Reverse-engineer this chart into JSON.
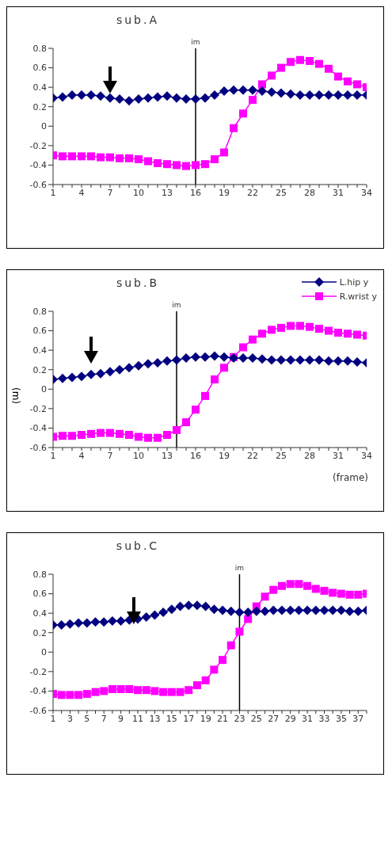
{
  "chart_data": [
    {
      "type": "line",
      "title": "sub.A",
      "x": [
        1,
        2,
        3,
        4,
        5,
        6,
        7,
        8,
        9,
        10,
        11,
        12,
        13,
        14,
        15,
        16,
        17,
        18,
        19,
        20,
        21,
        22,
        23,
        24,
        25,
        26,
        27,
        28,
        29,
        30,
        31,
        32,
        33,
        34
      ],
      "xlim": [
        1,
        34
      ],
      "xticks": [
        1,
        {
          "value": 2,
          "label": null
        },
        {
          "value": 3,
          "label": null
        },
        4,
        {
          "value": 5,
          "label": null
        },
        {
          "value": 6,
          "label": null
        },
        7,
        {
          "value": 8,
          "label": null
        },
        {
          "value": 9,
          "label": null
        },
        10,
        {
          "value": 11,
          "label": null
        },
        {
          "value": 12,
          "label": null
        },
        13,
        {
          "value": 14,
          "label": null
        },
        {
          "value": 15,
          "label": null
        },
        16,
        {
          "value": 17,
          "label": null
        },
        {
          "value": 18,
          "label": null
        },
        19,
        {
          "value": 20,
          "label": null
        },
        {
          "value": 21,
          "label": null
        },
        22,
        {
          "value": 23,
          "label": null
        },
        {
          "value": 24,
          "label": null
        },
        25,
        {
          "value": 26,
          "label": null
        },
        {
          "value": 27,
          "label": null
        },
        28,
        {
          "value": 29,
          "label": null
        },
        {
          "value": 30,
          "label": null
        },
        31,
        {
          "value": 32,
          "label": null
        },
        {
          "value": 33,
          "label": null
        },
        34
      ],
      "ylim": [
        -0.6,
        0.8
      ],
      "yticks": [
        -0.6,
        -0.4,
        -0.2,
        0,
        0.2,
        0.4,
        0.6,
        0.8
      ],
      "series": [
        {
          "color": "#000080",
          "marker": "diamond",
          "values": [
            0.29,
            0.3,
            0.32,
            0.32,
            0.32,
            0.31,
            0.29,
            0.28,
            0.26,
            0.28,
            0.29,
            0.3,
            0.31,
            0.29,
            0.28,
            0.28,
            0.29,
            0.32,
            0.36,
            0.37,
            0.37,
            0.37,
            0.36,
            0.35,
            0.34,
            0.33,
            0.32,
            0.32,
            0.32,
            0.32,
            0.32,
            0.32,
            0.32,
            0.32
          ]
        },
        {
          "color": "#ff00ff",
          "marker": "square",
          "values": [
            -0.3,
            -0.31,
            -0.31,
            -0.31,
            -0.31,
            -0.32,
            -0.32,
            -0.33,
            -0.33,
            -0.34,
            -0.36,
            -0.38,
            -0.39,
            -0.4,
            -0.41,
            -0.4,
            -0.39,
            -0.34,
            -0.27,
            -0.02,
            0.13,
            0.27,
            0.43,
            0.52,
            0.6,
            0.66,
            0.68,
            0.67,
            0.64,
            0.59,
            0.51,
            0.46,
            0.43,
            0.4
          ]
        }
      ],
      "ref_lines": [
        {
          "axis": "x",
          "value": 16,
          "label": "im",
          "color": "#000000"
        }
      ]
    },
    {
      "type": "line",
      "title": "sub.B",
      "xlabel": "(frame)",
      "ylabel": "(m)",
      "legend": "top right",
      "x": [
        1,
        2,
        3,
        4,
        5,
        6,
        7,
        8,
        9,
        10,
        11,
        12,
        13,
        14,
        15,
        16,
        17,
        18,
        19,
        20,
        21,
        22,
        23,
        24,
        25,
        26,
        27,
        28,
        29,
        30,
        31,
        32,
        33,
        34
      ],
      "xlim": [
        1,
        34
      ],
      "xticks": [
        1,
        {
          "value": 2,
          "label": null
        },
        {
          "value": 3,
          "label": null
        },
        4,
        {
          "value": 5,
          "label": null
        },
        {
          "value": 6,
          "label": null
        },
        7,
        {
          "value": 8,
          "label": null
        },
        {
          "value": 9,
          "label": null
        },
        10,
        {
          "value": 11,
          "label": null
        },
        {
          "value": 12,
          "label": null
        },
        13,
        {
          "value": 14,
          "label": null
        },
        {
          "value": 15,
          "label": null
        },
        16,
        {
          "value": 17,
          "label": null
        },
        {
          "value": 18,
          "label": null
        },
        19,
        {
          "value": 20,
          "label": null
        },
        {
          "value": 21,
          "label": null
        },
        22,
        {
          "value": 23,
          "label": null
        },
        {
          "value": 24,
          "label": null
        },
        25,
        {
          "value": 26,
          "label": null
        },
        {
          "value": 27,
          "label": null
        },
        28,
        {
          "value": 29,
          "label": null
        },
        {
          "value": 30,
          "label": null
        },
        31,
        {
          "value": 32,
          "label": null
        },
        {
          "value": 33,
          "label": null
        },
        34
      ],
      "ylim": [
        -0.6,
        0.8
      ],
      "yticks": [
        -0.6,
        -0.4,
        -0.2,
        0,
        0.2,
        0.4,
        0.6,
        0.8
      ],
      "series": [
        {
          "name": "L.hip y",
          "color": "#000080",
          "marker": "diamond",
          "values": [
            0.1,
            0.11,
            0.12,
            0.13,
            0.15,
            0.16,
            0.18,
            0.2,
            0.22,
            0.24,
            0.26,
            0.27,
            0.29,
            0.3,
            0.32,
            0.33,
            0.33,
            0.34,
            0.33,
            0.32,
            0.32,
            0.32,
            0.31,
            0.3,
            0.3,
            0.3,
            0.3,
            0.3,
            0.3,
            0.29,
            0.29,
            0.29,
            0.28,
            0.27
          ]
        },
        {
          "name": "R.wrist y",
          "color": "#ff00ff",
          "marker": "square",
          "values": [
            -0.49,
            -0.48,
            -0.48,
            -0.47,
            -0.46,
            -0.45,
            -0.45,
            -0.46,
            -0.47,
            -0.49,
            -0.5,
            -0.5,
            -0.47,
            -0.42,
            -0.34,
            -0.21,
            -0.07,
            0.1,
            0.22,
            0.33,
            0.43,
            0.51,
            0.57,
            0.61,
            0.63,
            0.65,
            0.65,
            0.64,
            0.62,
            0.6,
            0.58,
            0.57,
            0.56,
            0.55
          ]
        }
      ],
      "ref_lines": [
        {
          "axis": "x",
          "value": 14,
          "label": "im",
          "color": "#000000"
        }
      ]
    },
    {
      "type": "line",
      "title": "sub.C",
      "x": [
        1,
        2,
        3,
        4,
        5,
        6,
        7,
        8,
        9,
        10,
        11,
        12,
        13,
        14,
        15,
        16,
        17,
        18,
        19,
        20,
        21,
        22,
        23,
        24,
        25,
        26,
        27,
        28,
        29,
        30,
        31,
        32,
        33,
        34,
        35,
        36,
        37,
        38
      ],
      "xlim": [
        1,
        38
      ],
      "xticks": [
        1,
        {
          "value": 2,
          "label": null
        },
        3,
        {
          "value": 4,
          "label": null
        },
        5,
        {
          "value": 6,
          "label": null
        },
        7,
        {
          "value": 8,
          "label": null
        },
        9,
        {
          "value": 10,
          "label": null
        },
        11,
        {
          "value": 12,
          "label": null
        },
        13,
        {
          "value": 14,
          "label": null
        },
        15,
        {
          "value": 16,
          "label": null
        },
        17,
        {
          "value": 18,
          "label": null
        },
        19,
        {
          "value": 20,
          "label": null
        },
        21,
        {
          "value": 22,
          "label": null
        },
        23,
        {
          "value": 24,
          "label": null
        },
        25,
        {
          "value": 26,
          "label": null
        },
        27,
        {
          "value": 28,
          "label": null
        },
        29,
        {
          "value": 30,
          "label": null
        },
        31,
        {
          "value": 32,
          "label": null
        },
        33,
        {
          "value": 34,
          "label": null
        },
        35,
        {
          "value": 36,
          "label": null
        },
        37,
        {
          "value": 38,
          "label": null
        }
      ],
      "ylim": [
        -0.6,
        0.8
      ],
      "yticks": [
        -0.6,
        -0.4,
        -0.2,
        0,
        0.2,
        0.4,
        0.6,
        0.8
      ],
      "series": [
        {
          "color": "#000080",
          "marker": "diamond",
          "values": [
            0.28,
            0.28,
            0.29,
            0.3,
            0.3,
            0.31,
            0.31,
            0.32,
            0.32,
            0.33,
            0.34,
            0.36,
            0.38,
            0.41,
            0.44,
            0.47,
            0.48,
            0.48,
            0.47,
            0.44,
            0.43,
            0.42,
            0.41,
            0.41,
            0.42,
            0.42,
            0.43,
            0.43,
            0.43,
            0.43,
            0.43,
            0.43,
            0.43,
            0.43,
            0.43,
            0.42,
            0.42,
            0.43
          ]
        },
        {
          "color": "#ff00ff",
          "marker": "square",
          "values": [
            -0.43,
            -0.44,
            -0.44,
            -0.44,
            -0.43,
            -0.41,
            -0.4,
            -0.38,
            -0.38,
            -0.38,
            -0.39,
            -0.39,
            -0.4,
            -0.41,
            -0.41,
            -0.41,
            -0.39,
            -0.34,
            -0.29,
            -0.18,
            -0.08,
            0.07,
            0.21,
            0.34,
            0.47,
            0.57,
            0.64,
            0.68,
            0.7,
            0.7,
            0.68,
            0.65,
            0.63,
            0.61,
            0.6,
            0.59,
            0.59,
            0.6
          ]
        }
      ],
      "ref_lines": [
        {
          "axis": "x",
          "value": 23,
          "label": "im",
          "color": "#000000"
        }
      ]
    }
  ]
}
